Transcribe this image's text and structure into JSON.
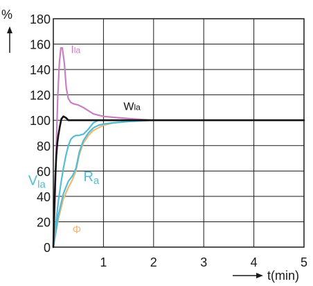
{
  "chart_data": {
    "type": "line",
    "title": "",
    "xlabel": "t(min)",
    "ylabel": "%",
    "xlim": [
      0,
      5
    ],
    "ylim": [
      0,
      180
    ],
    "xticks": [
      "1",
      "2",
      "3",
      "4",
      "5"
    ],
    "yticks": [
      "0",
      "20",
      "40",
      "60",
      "80",
      "100",
      "120",
      "140",
      "160",
      "180"
    ],
    "grid": true,
    "series": [
      {
        "name": "Ila",
        "color": "#c97fc2",
        "x": [
          0,
          0.03,
          0.06,
          0.09,
          0.12,
          0.15,
          0.18,
          0.22,
          0.26,
          0.3,
          0.35,
          0.4,
          0.5,
          0.6,
          0.8,
          1.0,
          1.3,
          1.6,
          2.0,
          3.0,
          5.0
        ],
        "y": [
          0,
          30,
          80,
          120,
          145,
          157,
          157,
          145,
          125,
          117,
          114,
          113,
          112,
          110,
          105,
          103,
          102,
          101,
          100,
          100,
          100
        ]
      },
      {
        "name": "Wla",
        "color": "#111111",
        "x": [
          0,
          0.02,
          0.04,
          0.06,
          0.08,
          0.1,
          0.13,
          0.16,
          0.2,
          0.25,
          0.3,
          0.4,
          0.6,
          1.0,
          2.0,
          3.0,
          5.0
        ],
        "y": [
          0,
          30,
          55,
          72,
          82,
          88,
          95,
          101,
          103,
          102,
          100,
          100,
          100,
          100,
          100,
          100,
          100
        ]
      },
      {
        "name": "Vla",
        "color": "#52bdd4",
        "x": [
          0,
          0.05,
          0.1,
          0.15,
          0.2,
          0.25,
          0.3,
          0.35,
          0.4,
          0.45,
          0.5,
          0.6,
          0.7,
          0.8,
          0.9,
          1.0,
          1.3,
          2.0,
          5.0
        ],
        "y": [
          0,
          18,
          36,
          50,
          62,
          72,
          80,
          85,
          87,
          88,
          88,
          89,
          93,
          98,
          100,
          100,
          100,
          100,
          100
        ]
      },
      {
        "name": "Ra",
        "color": "#52bdd4",
        "x": [
          0,
          0.1,
          0.2,
          0.3,
          0.38,
          0.45,
          0.52,
          0.6,
          0.7,
          0.8,
          0.9,
          1.0,
          1.2,
          1.5,
          2.0,
          5.0
        ],
        "y": [
          0,
          25,
          42,
          52,
          56,
          62,
          75,
          84,
          90,
          94,
          96,
          97,
          98,
          99,
          100,
          100
        ]
      },
      {
        "name": "Φ",
        "color": "#f0b878",
        "x": [
          0,
          0.1,
          0.2,
          0.3,
          0.38,
          0.45,
          0.52,
          0.6,
          0.7,
          0.8,
          0.9,
          1.0,
          1.2,
          1.5,
          2.0,
          5.0
        ],
        "y": [
          0,
          22,
          38,
          47,
          53,
          60,
          73,
          82,
          88,
          92,
          94,
          96,
          98,
          99,
          100,
          100
        ]
      }
    ],
    "annotations": [
      {
        "text": "Ila",
        "series": 0,
        "x": 0.35,
        "y": 153,
        "color": "#c97fc2",
        "size": "small"
      },
      {
        "text": "Wla",
        "series": 1,
        "x": 1.4,
        "y": 108,
        "color": "#111111",
        "size": "small"
      },
      {
        "text": "Vla",
        "series": 2,
        "x": -0.5,
        "y": 49,
        "color": "#52bdd4",
        "size": "large"
      },
      {
        "text": "Ra",
        "series": 3,
        "x": 0.6,
        "y": 52,
        "color": "#52bdd4",
        "size": "large"
      },
      {
        "text": "Φ",
        "series": 4,
        "x": 0.38,
        "y": 11,
        "color": "#f0b878",
        "size": "small"
      }
    ]
  }
}
